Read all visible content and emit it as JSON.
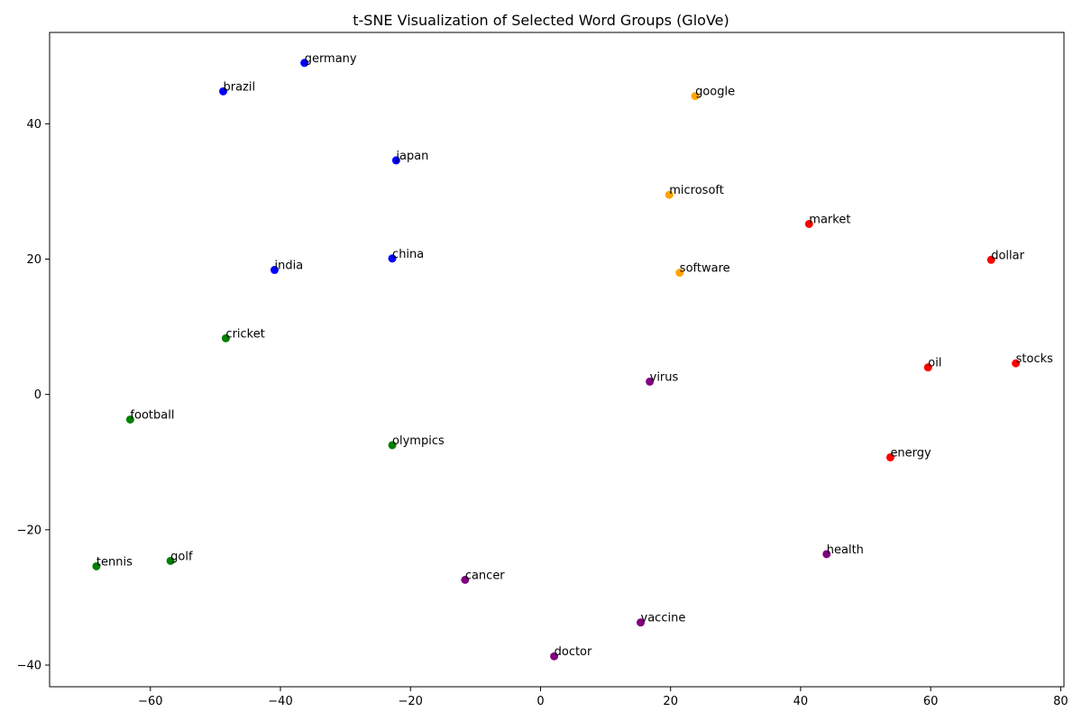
{
  "chart_data": {
    "type": "scatter",
    "title": "t-SNE Visualization of Selected Word Groups (GloVe)",
    "xlabel": "",
    "ylabel": "",
    "xlim": [
      -75.5,
      80.5
    ],
    "ylim": [
      -43.2,
      53.5
    ],
    "xticks": [
      -60,
      -40,
      -20,
      0,
      20,
      40,
      60,
      80
    ],
    "yticks": [
      -40,
      -20,
      0,
      20,
      40
    ],
    "grid": false,
    "legend": "none",
    "colors": {
      "blue": "#0000ff",
      "orange": "#ffa500",
      "red": "#ff0000",
      "green": "#008000",
      "purple": "#800080"
    },
    "points": [
      {
        "label": "germany",
        "x": -36.3,
        "y": 49.0,
        "color": "blue"
      },
      {
        "label": "brazil",
        "x": -48.8,
        "y": 44.8,
        "color": "blue"
      },
      {
        "label": "japan",
        "x": -22.2,
        "y": 34.6,
        "color": "blue"
      },
      {
        "label": "china",
        "x": -22.8,
        "y": 20.1,
        "color": "blue"
      },
      {
        "label": "india",
        "x": -40.9,
        "y": 18.4,
        "color": "blue"
      },
      {
        "label": "google",
        "x": 23.8,
        "y": 44.1,
        "color": "orange"
      },
      {
        "label": "microsoft",
        "x": 19.8,
        "y": 29.5,
        "color": "orange"
      },
      {
        "label": "software",
        "x": 21.4,
        "y": 18.0,
        "color": "orange"
      },
      {
        "label": "market",
        "x": 41.3,
        "y": 25.2,
        "color": "red"
      },
      {
        "label": "dollar",
        "x": 69.3,
        "y": 19.9,
        "color": "red"
      },
      {
        "label": "oil",
        "x": 59.6,
        "y": 4.0,
        "color": "red"
      },
      {
        "label": "stocks",
        "x": 73.1,
        "y": 4.6,
        "color": "red"
      },
      {
        "label": "energy",
        "x": 53.8,
        "y": -9.3,
        "color": "red"
      },
      {
        "label": "cricket",
        "x": -48.4,
        "y": 8.3,
        "color": "green"
      },
      {
        "label": "football",
        "x": -63.1,
        "y": -3.7,
        "color": "green"
      },
      {
        "label": "olympics",
        "x": -22.8,
        "y": -7.5,
        "color": "green"
      },
      {
        "label": "golf",
        "x": -56.9,
        "y": -24.6,
        "color": "green"
      },
      {
        "label": "tennis",
        "x": -68.3,
        "y": -25.4,
        "color": "green"
      },
      {
        "label": "virus",
        "x": 16.8,
        "y": 1.9,
        "color": "purple"
      },
      {
        "label": "health",
        "x": 44.0,
        "y": -23.6,
        "color": "purple"
      },
      {
        "label": "cancer",
        "x": -11.6,
        "y": -27.4,
        "color": "purple"
      },
      {
        "label": "vaccine",
        "x": 15.4,
        "y": -33.7,
        "color": "purple"
      },
      {
        "label": "doctor",
        "x": 2.1,
        "y": -38.7,
        "color": "purple"
      }
    ]
  }
}
